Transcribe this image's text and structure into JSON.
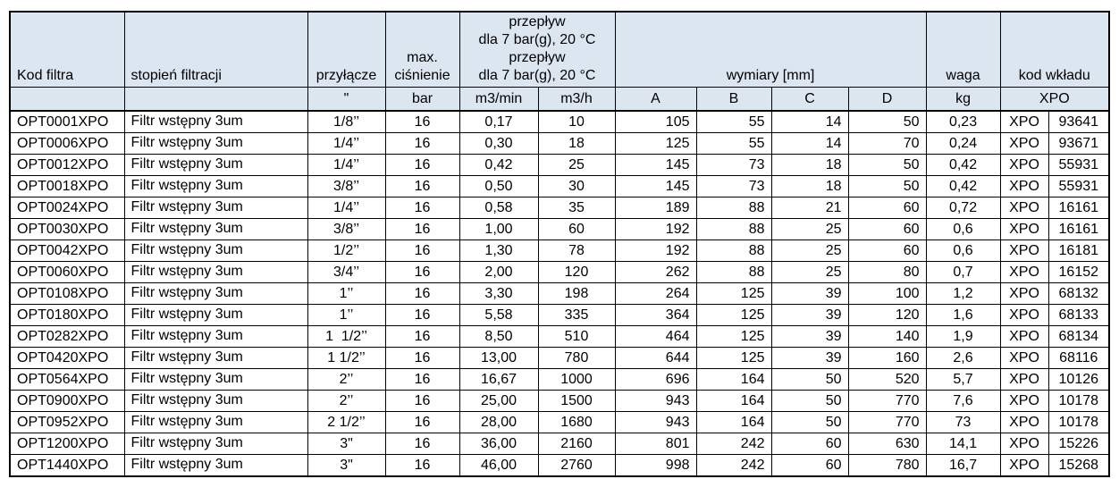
{
  "table": {
    "header": {
      "kod_filtra": "Kod filtra",
      "stopien_filtracji": "stopień filtracji",
      "przylacze": "przyłącze",
      "max_cisnienie": "max.\nciśnienie",
      "przeplyw": "przepływ\ndla 7 bar(g), 20 °C\nprzepływ\ndla 7 bar(g), 20 °C",
      "wymiary": "wymiary [mm]",
      "waga": "waga",
      "kod_wkladu": "kod wkładu",
      "units": {
        "inch": "\"",
        "bar": "bar",
        "m3min": "m3/min",
        "m3h": "m3/h",
        "dim_a": "A",
        "dim_b": "B",
        "dim_c": "C",
        "dim_d": "D",
        "kg": "kg",
        "xpo": "XPO"
      }
    },
    "column_keys": [
      "kod-filtra",
      "stopien-filtracji",
      "przylacze",
      "max-cisnienie",
      "przeplyw-m3min",
      "przeplyw-m3h",
      "wymiar-a",
      "wymiar-b",
      "wymiar-c",
      "wymiar-d",
      "waga",
      "wklad-prefix",
      "wklad-numer"
    ],
    "rows": [
      [
        "OPT0001XPO",
        "Filtr wstępny 3um",
        "1/8’’",
        "16",
        "0,17",
        "10",
        "105",
        "55",
        "14",
        "50",
        "0,23",
        "XPO",
        "93641"
      ],
      [
        "OPT0006XPO",
        "Filtr wstępny 3um",
        "1/4’’",
        "16",
        "0,30",
        "18",
        "125",
        "55",
        "14",
        "70",
        "0,24",
        "XPO",
        "93671"
      ],
      [
        "OPT0012XPO",
        "Filtr wstępny 3um",
        "1/4’’",
        "16",
        "0,42",
        "25",
        "145",
        "73",
        "18",
        "50",
        "0,42",
        "XPO",
        "55931"
      ],
      [
        "OPT0018XPO",
        "Filtr wstępny 3um",
        "3/8’’",
        "16",
        "0,50",
        "30",
        "145",
        "73",
        "18",
        "50",
        "0,42",
        "XPO",
        "55931"
      ],
      [
        "OPT0024XPO",
        "Filtr wstępny 3um",
        "1/4’’",
        "16",
        "0,58",
        "35",
        "189",
        "88",
        "21",
        "60",
        "0,72",
        "XPO",
        "16161"
      ],
      [
        "OPT0030XPO",
        "Filtr wstępny 3um",
        "3/8’’",
        "16",
        "1,00",
        "60",
        "192",
        "88",
        "25",
        "60",
        "0,6",
        "XPO",
        "16161"
      ],
      [
        "OPT0042XPO",
        "Filtr wstępny 3um",
        "1/2’’",
        "16",
        "1,30",
        "78",
        "192",
        "88",
        "25",
        "60",
        "0,6",
        "XPO",
        "16181"
      ],
      [
        "OPT0060XPO",
        "Filtr wstępny 3um",
        "3/4’’",
        "16",
        "2,00",
        "120",
        "262",
        "88",
        "25",
        "80",
        "0,7",
        "XPO",
        "16152"
      ],
      [
        "OPT0108XPO",
        "Filtr wstępny 3um",
        "1’’",
        "16",
        "3,30",
        "198",
        "264",
        "125",
        "39",
        "100",
        "1,2",
        "XPO",
        "68132"
      ],
      [
        "OPT0180XPO",
        "Filtr wstępny 3um",
        "1’’",
        "16",
        "5,58",
        "335",
        "364",
        "125",
        "39",
        "120",
        "1,6",
        "XPO",
        "68133"
      ],
      [
        "OPT0282XPO",
        "Filtr wstępny 3um",
        "1  1/2’’",
        "16",
        "8,50",
        "510",
        "464",
        "125",
        "39",
        "140",
        "1,9",
        "XPO",
        "68134"
      ],
      [
        "OPT0420XPO",
        "Filtr wstępny 3um",
        "1 1/2’’",
        "16",
        "13,00",
        "780",
        "644",
        "125",
        "39",
        "160",
        "2,6",
        "XPO",
        "68116"
      ],
      [
        "OPT0564XPO",
        "Filtr wstępny 3um",
        "2’’",
        "16",
        "16,67",
        "1000",
        "696",
        "164",
        "50",
        "520",
        "5,7",
        "XPO",
        "10126"
      ],
      [
        "OPT0900XPO",
        "Filtr wstępny 3um",
        "2’’",
        "16",
        "25,00",
        "1500",
        "943",
        "164",
        "50",
        "770",
        "7,6",
        "XPO",
        "10178"
      ],
      [
        "OPT0952XPO",
        "Filtr wstępny 3um",
        "2 1/2’’",
        "16",
        "28,00",
        "1680",
        "943",
        "164",
        "50",
        "770",
        "73",
        "XPO",
        "10178"
      ],
      [
        "OPT1200XPO",
        "Filtr wstępny 3um",
        "3\"",
        "16",
        "36,00",
        "2160",
        "801",
        "242",
        "60",
        "630",
        "14,1",
        "XPO",
        "15226"
      ],
      [
        "OPT1440XPO",
        "Filtr wstępny 3um",
        "3\"",
        "16",
        "46,00",
        "2760",
        "998",
        "242",
        "60",
        "780",
        "16,7",
        "XPO",
        "15268"
      ]
    ],
    "colors": {
      "header_bg": "#dce6f1",
      "border": "#000000",
      "text": "#000000"
    }
  }
}
